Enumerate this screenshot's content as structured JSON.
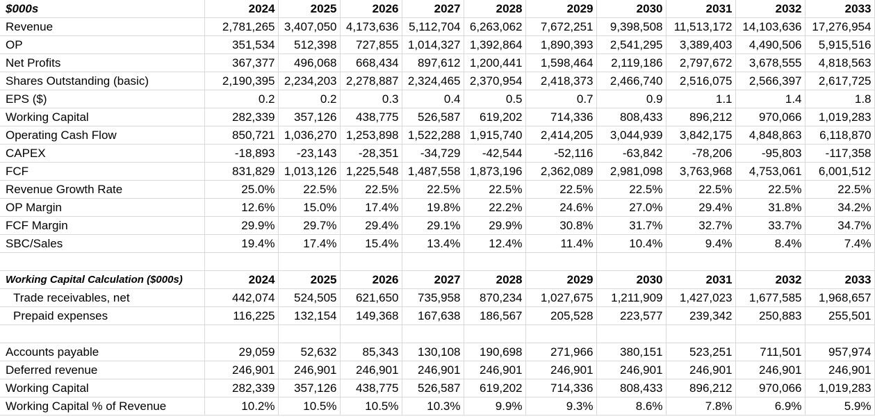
{
  "main_table": {
    "header": [
      "$000s",
      "2024",
      "2025",
      "2026",
      "2027",
      "2028",
      "2029",
      "2030",
      "2031",
      "2032",
      "2033"
    ],
    "rows": [
      [
        "Revenue",
        "2,781,265",
        "3,407,050",
        "4,173,636",
        "5,112,704",
        "6,263,062",
        "7,672,251",
        "9,398,508",
        "11,513,172",
        "14,103,636",
        "17,276,954"
      ],
      [
        "OP",
        "351,534",
        "512,398",
        "727,855",
        "1,014,327",
        "1,392,864",
        "1,890,393",
        "2,541,295",
        "3,389,403",
        "4,490,506",
        "5,915,516"
      ],
      [
        "Net Profits",
        "367,377",
        "496,068",
        "668,434",
        "897,612",
        "1,200,441",
        "1,598,464",
        "2,119,186",
        "2,797,672",
        "3,678,555",
        "4,818,563"
      ],
      [
        "Shares Outstanding (basic)",
        "2,190,395",
        "2,234,203",
        "2,278,887",
        "2,324,465",
        "2,370,954",
        "2,418,373",
        "2,466,740",
        "2,516,075",
        "2,566,397",
        "2,617,725"
      ],
      [
        "EPS ($)",
        "0.2",
        "0.2",
        "0.3",
        "0.4",
        "0.5",
        "0.7",
        "0.9",
        "1.1",
        "1.4",
        "1.8"
      ],
      [
        "Working Capital",
        "282,339",
        "357,126",
        "438,775",
        "526,587",
        "619,202",
        "714,336",
        "808,433",
        "896,212",
        "970,066",
        "1,019,283"
      ],
      [
        "Operating Cash Flow",
        "850,721",
        "1,036,270",
        "1,253,898",
        "1,522,288",
        "1,915,740",
        "2,414,205",
        "3,044,939",
        "3,842,175",
        "4,848,863",
        "6,118,870"
      ],
      [
        "CAPEX",
        "-18,893",
        "-23,143",
        "-28,351",
        "-34,729",
        "-42,544",
        "-52,116",
        "-63,842",
        "-78,206",
        "-95,803",
        "-117,358"
      ],
      [
        "FCF",
        "831,829",
        "1,013,126",
        "1,225,548",
        "1,487,558",
        "1,873,196",
        "2,362,089",
        "2,981,098",
        "3,763,968",
        "4,753,061",
        "6,001,512"
      ],
      [
        "Revenue Growth Rate",
        "25.0%",
        "22.5%",
        "22.5%",
        "22.5%",
        "22.5%",
        "22.5%",
        "22.5%",
        "22.5%",
        "22.5%",
        "22.5%"
      ],
      [
        "OP Margin",
        "12.6%",
        "15.0%",
        "17.4%",
        "19.8%",
        "22.2%",
        "24.6%",
        "27.0%",
        "29.4%",
        "31.8%",
        "34.2%"
      ],
      [
        "FCF Margin",
        "29.9%",
        "29.7%",
        "29.4%",
        "29.1%",
        "29.9%",
        "30.8%",
        "31.7%",
        "32.7%",
        "33.7%",
        "34.7%"
      ],
      [
        "SBC/Sales",
        "19.4%",
        "17.4%",
        "15.4%",
        "13.4%",
        "12.4%",
        "11.4%",
        "10.4%",
        "9.4%",
        "8.4%",
        "7.4%"
      ]
    ]
  },
  "wc_table": {
    "header": [
      "Working Capital Calculation ($000s)",
      "2024",
      "2025",
      "2026",
      "2027",
      "2028",
      "2029",
      "2030",
      "2031",
      "2032",
      "2033"
    ],
    "asset_rows": [
      [
        "Trade receivables, net",
        "442,074",
        "524,505",
        "621,650",
        "735,958",
        "870,234",
        "1,027,675",
        "1,211,909",
        "1,427,023",
        "1,677,585",
        "1,968,657"
      ],
      [
        "Prepaid expenses",
        "116,225",
        "132,154",
        "149,368",
        "167,638",
        "186,567",
        "205,528",
        "223,577",
        "239,342",
        "250,883",
        "255,501"
      ]
    ],
    "liability_rows": [
      [
        "Accounts payable",
        "29,059",
        "52,632",
        "85,343",
        "130,108",
        "190,698",
        "271,966",
        "380,151",
        "523,251",
        "711,501",
        "957,974"
      ],
      [
        "Deferred revenue",
        "246,901",
        "246,901",
        "246,901",
        "246,901",
        "246,901",
        "246,901",
        "246,901",
        "246,901",
        "246,901",
        "246,901"
      ],
      [
        "Working Capital",
        "282,339",
        "357,126",
        "438,775",
        "526,587",
        "619,202",
        "714,336",
        "808,433",
        "896,212",
        "970,066",
        "1,019,283"
      ],
      [
        "Working Capital % of Revenue",
        "10.2%",
        "10.5%",
        "10.5%",
        "10.3%",
        "9.9%",
        "9.3%",
        "8.6%",
        "7.8%",
        "6.9%",
        "5.9%"
      ]
    ]
  }
}
